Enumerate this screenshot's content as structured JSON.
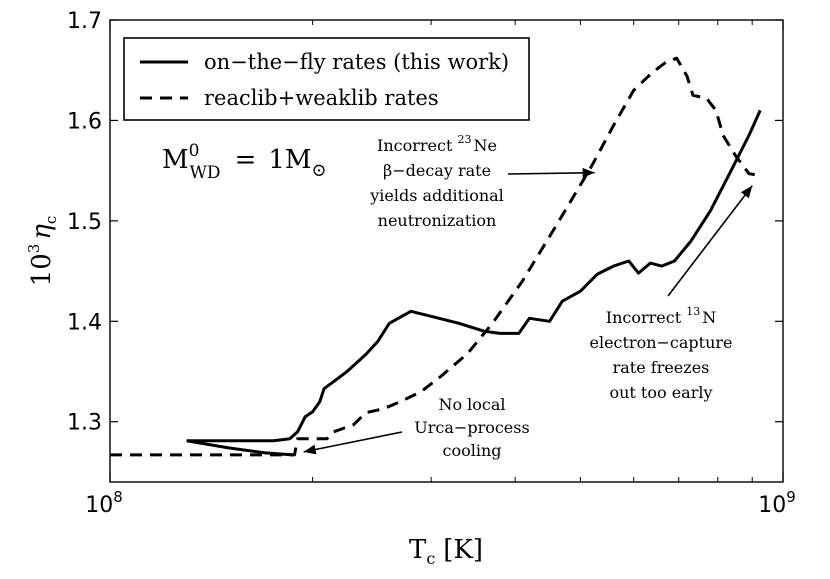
{
  "chart_data": {
    "type": "line",
    "xlabel_main": "T",
    "xlabel_sub": "c",
    "xlabel_unit": "[K]",
    "ylabel_prefix": "10",
    "ylabel_exp": "3",
    "ylabel_symbol": "η",
    "ylabel_sub": "c",
    "xscale": "log",
    "xlim": [
      100000000,
      1000000000
    ],
    "ylim": [
      1.24,
      1.7
    ],
    "xticks": [
      {
        "value": 100000000,
        "base": "10",
        "exp": "8"
      },
      {
        "value": 1000000000,
        "base": "10",
        "exp": "9"
      }
    ],
    "yticks": [
      {
        "value": 1.3,
        "label": "1.3"
      },
      {
        "value": 1.4,
        "label": "1.4"
      },
      {
        "value": 1.5,
        "label": "1.5"
      },
      {
        "value": 1.6,
        "label": "1.6"
      },
      {
        "value": 1.7,
        "label": "1.7"
      }
    ],
    "legend_position": "top-left",
    "series": [
      {
        "name": "on−the−fly rates (this work)",
        "style": "solid",
        "points": [
          [
            130000000.0,
            1.281
          ],
          [
            155000000.0,
            1.281
          ],
          [
            175000000.0,
            1.281
          ],
          [
            185000000.0,
            1.283
          ],
          [
            190000000.0,
            1.29
          ],
          [
            195000000.0,
            1.305
          ],
          [
            200000000.0,
            1.31
          ],
          [
            205000000.0,
            1.32
          ],
          [
            208000000.0,
            1.333
          ],
          [
            215000000.0,
            1.34
          ],
          [
            225000000.0,
            1.35
          ],
          [
            240000000.0,
            1.367
          ],
          [
            250000000.0,
            1.38
          ],
          [
            260000000.0,
            1.398
          ],
          [
            280000000.0,
            1.41
          ],
          [
            300000000.0,
            1.405
          ],
          [
            330000000.0,
            1.398
          ],
          [
            360000000.0,
            1.39
          ],
          [
            380000000.0,
            1.388
          ],
          [
            405000000.0,
            1.388
          ],
          [
            420000000.0,
            1.403
          ],
          [
            450000000.0,
            1.4
          ],
          [
            470000000.0,
            1.42
          ],
          [
            500000000.0,
            1.43
          ],
          [
            530000000.0,
            1.447
          ],
          [
            560000000.0,
            1.455
          ],
          [
            590000000.0,
            1.46
          ],
          [
            610000000.0,
            1.448
          ],
          [
            635000000.0,
            1.458
          ],
          [
            660000000.0,
            1.455
          ],
          [
            690000000.0,
            1.46
          ],
          [
            730000000.0,
            1.48
          ],
          [
            780000000.0,
            1.51
          ],
          [
            830000000.0,
            1.545
          ],
          [
            890000000.0,
            1.585
          ],
          [
            925000000.0,
            1.61
          ]
        ],
        "branch": [
          [
            130000000.0,
            1.281
          ],
          [
            150000000.0,
            1.274
          ],
          [
            170000000.0,
            1.269
          ],
          [
            187000000.0,
            1.267
          ]
        ]
      },
      {
        "name": "reaclib+weaklib rates",
        "style": "dashed",
        "points": [
          [
            100000000.0,
            1.267
          ],
          [
            150000000.0,
            1.267
          ],
          [
            188000000.0,
            1.267
          ],
          [
            190000000.0,
            1.283
          ],
          [
            210000000.0,
            1.283
          ],
          [
            215000000.0,
            1.29
          ],
          [
            230000000.0,
            1.297
          ],
          [
            240000000.0,
            1.309
          ],
          [
            255000000.0,
            1.313
          ],
          [
            270000000.0,
            1.32
          ],
          [
            290000000.0,
            1.33
          ],
          [
            310000000.0,
            1.345
          ],
          [
            340000000.0,
            1.368
          ],
          [
            370000000.0,
            1.398
          ],
          [
            410000000.0,
            1.44
          ],
          [
            460000000.0,
            1.495
          ],
          [
            520000000.0,
            1.555
          ],
          [
            560000000.0,
            1.595
          ],
          [
            600000000.0,
            1.63
          ],
          [
            640000000.0,
            1.648
          ],
          [
            670000000.0,
            1.658
          ],
          [
            695000000.0,
            1.662
          ],
          [
            720000000.0,
            1.644
          ],
          [
            735000000.0,
            1.625
          ],
          [
            770000000.0,
            1.622
          ],
          [
            795000000.0,
            1.61
          ],
          [
            815000000.0,
            1.585
          ],
          [
            850000000.0,
            1.565
          ],
          [
            890000000.0,
            1.547
          ],
          [
            930000000.0,
            1.545
          ]
        ]
      }
    ],
    "annotations": [
      {
        "id": "ne23",
        "lines": [
          "Incorrect ",
          "β−decay rate",
          "yields additional",
          "neutronization"
        ],
        "isotope_mass": "23",
        "isotope_symbol": "Ne",
        "arrow_to": [
          525000000.0,
          1.548
        ]
      },
      {
        "id": "n13",
        "lines": [
          "Incorrect ",
          "electron−capture",
          "rate freezes",
          "out too early"
        ],
        "isotope_mass": "13",
        "isotope_symbol": "N",
        "arrow_to": [
          900000000.0,
          1.535
        ]
      },
      {
        "id": "urca",
        "lines": [
          "No local",
          "Urca−process",
          "cooling"
        ],
        "arrow_to": [
          194000000.0,
          1.27
        ]
      }
    ],
    "mass_label": {
      "M": "M",
      "sup": "0",
      "sub": "WD",
      "eq": "=",
      "num": "1M",
      "sun": "⊙"
    }
  }
}
